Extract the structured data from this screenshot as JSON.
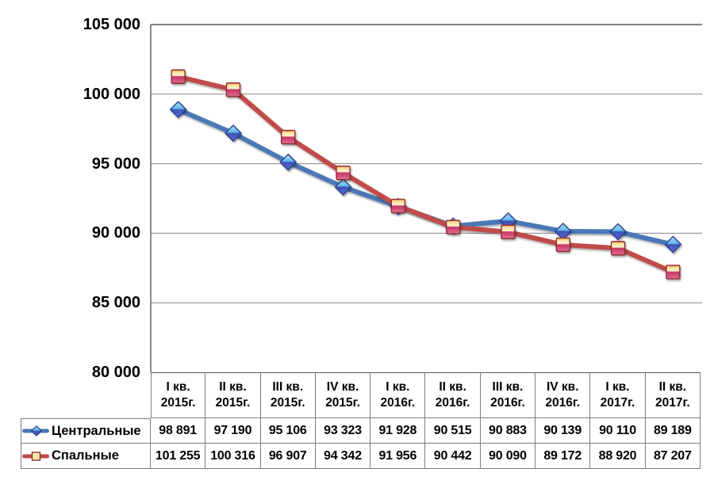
{
  "chart_data": {
    "type": "line",
    "title": "",
    "xlabel": "",
    "ylabel": "",
    "ylim": [
      80000,
      105000
    ],
    "grid": "horizontal",
    "legend_position": "table-left-column",
    "y_ticks": [
      {
        "label": "105 000",
        "value": 105000
      },
      {
        "label": "100 000",
        "value": 100000
      },
      {
        "label": "95 000",
        "value": 95000
      },
      {
        "label": "90 000",
        "value": 90000
      },
      {
        "label": "85 000",
        "value": 85000
      },
      {
        "label": "80 000",
        "value": 80000
      }
    ],
    "categories": [
      {
        "q": "I кв.",
        "year": "2015г."
      },
      {
        "q": "II кв.",
        "year": "2015г."
      },
      {
        "q": "III кв.",
        "year": "2015г."
      },
      {
        "q": "IV кв.",
        "year": "2015г."
      },
      {
        "q": "I кв.",
        "year": "2016г."
      },
      {
        "q": "II кв.",
        "year": "2016г."
      },
      {
        "q": "III кв.",
        "year": "2016г."
      },
      {
        "q": "IV кв.",
        "year": "2016г."
      },
      {
        "q": "I кв.",
        "year": "2017г."
      },
      {
        "q": "II кв.",
        "year": "2017г."
      }
    ],
    "series": [
      {
        "name": "Центральные",
        "color": "#4B78B6",
        "marker": "diamond",
        "marker_border": "#2B3F8F",
        "marker_gradient": [
          "#AEE7F8",
          "#5FB5EA",
          "#3D53B6",
          "#5E68D8"
        ],
        "legend_marker_fill": "",
        "values": [
          98891,
          97190,
          95106,
          93323,
          91928,
          90515,
          90883,
          90139,
          90110,
          89189
        ],
        "display": [
          "98 891",
          "97 190",
          "95 106",
          "93 323",
          "91 928",
          "90 515",
          "90 883",
          "90 139",
          "90 110",
          "89 189"
        ]
      },
      {
        "name": "Спальные",
        "color": "#C04B48",
        "marker": "square",
        "marker_border": "#8F2F36",
        "marker_gradient": [
          "#F0A04C",
          "#FBE39E",
          "#FDF4D0",
          "#C83563",
          "#DF7092"
        ],
        "legend_marker_fill": "#FBE8A6",
        "values": [
          101255,
          100316,
          96907,
          94342,
          91956,
          90442,
          90090,
          89172,
          88920,
          87207
        ],
        "display": [
          "101 255",
          "100 316",
          "96 907",
          "94 342",
          "91 956",
          "90 442",
          "90 090",
          "89 172",
          "88 920",
          "87 207"
        ]
      }
    ],
    "colors": {
      "frame": "#595959",
      "gridline": "#858585",
      "table_border": "#7F7F7F",
      "text": "#000000",
      "background": "#FFFFFF"
    }
  }
}
